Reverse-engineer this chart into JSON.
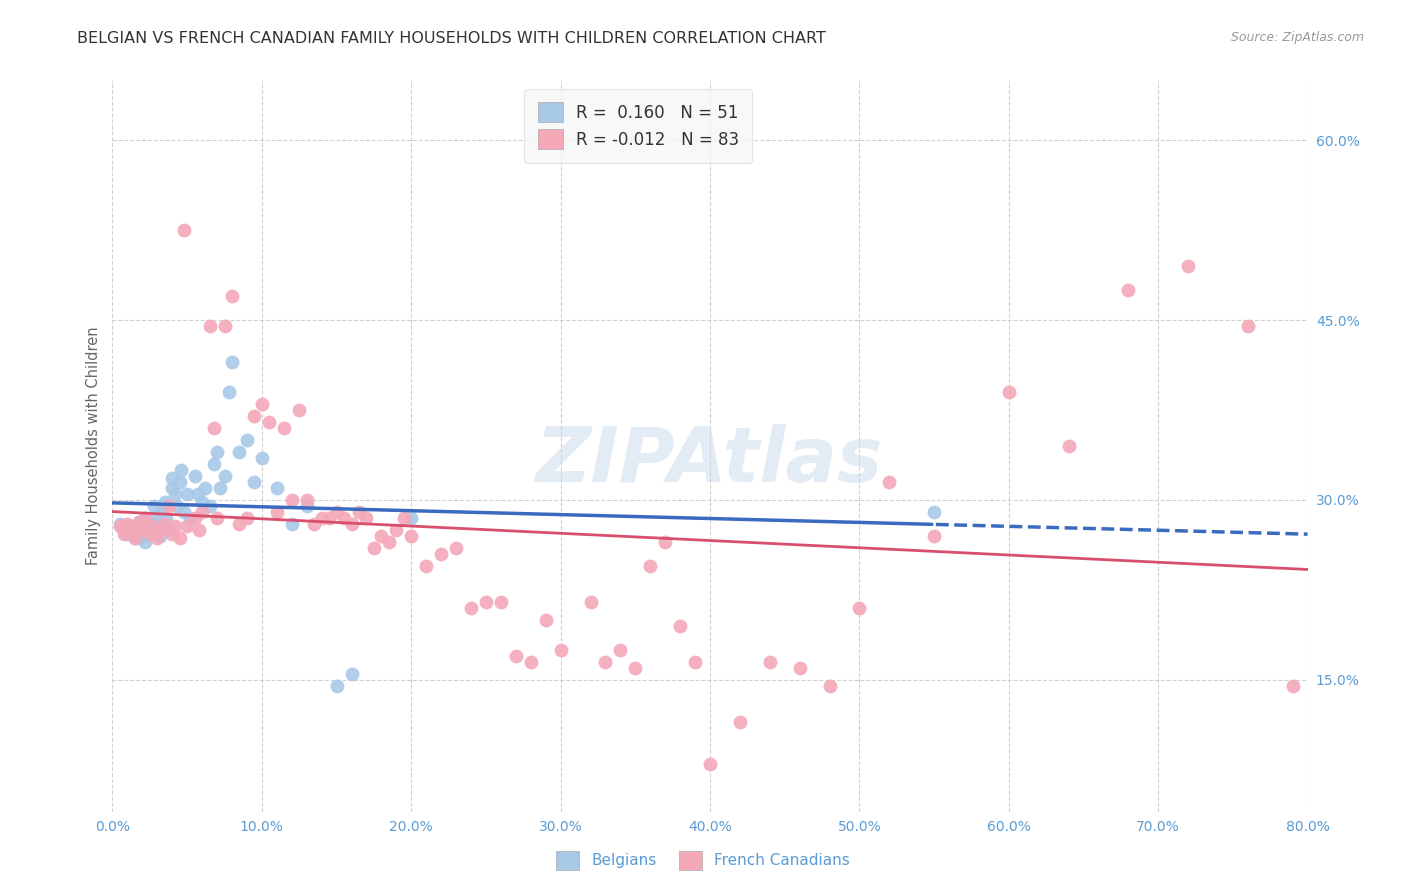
{
  "title": "BELGIAN VS FRENCH CANADIAN FAMILY HOUSEHOLDS WITH CHILDREN CORRELATION CHART",
  "source": "Source: ZipAtlas.com",
  "ylabel": "Family Households with Children",
  "xlim": [
    0.0,
    0.8
  ],
  "ylim": [
    0.04,
    0.65
  ],
  "belgian_color": "#a8c8e8",
  "french_color": "#f4a8b8",
  "belgian_line_color": "#3a6bbf",
  "french_line_color": "#d94f6e",
  "belgian_R": 0.16,
  "belgian_N": 51,
  "french_R": -0.012,
  "french_N": 83,
  "belgians_x": [
    0.005,
    0.008,
    0.01,
    0.012,
    0.015,
    0.015,
    0.018,
    0.02,
    0.022,
    0.022,
    0.025,
    0.027,
    0.028,
    0.03,
    0.03,
    0.032,
    0.033,
    0.035,
    0.036,
    0.038,
    0.04,
    0.04,
    0.042,
    0.043,
    0.045,
    0.046,
    0.048,
    0.05,
    0.052,
    0.055,
    0.057,
    0.06,
    0.062,
    0.065,
    0.068,
    0.07,
    0.072,
    0.075,
    0.078,
    0.08,
    0.085,
    0.09,
    0.095,
    0.1,
    0.11,
    0.12,
    0.13,
    0.15,
    0.16,
    0.2,
    0.55
  ],
  "belgians_y": [
    0.28,
    0.275,
    0.272,
    0.278,
    0.268,
    0.276,
    0.282,
    0.27,
    0.265,
    0.285,
    0.275,
    0.28,
    0.295,
    0.278,
    0.285,
    0.27,
    0.292,
    0.298,
    0.285,
    0.275,
    0.31,
    0.318,
    0.305,
    0.295,
    0.315,
    0.325,
    0.29,
    0.305,
    0.285,
    0.32,
    0.305,
    0.298,
    0.31,
    0.295,
    0.33,
    0.34,
    0.31,
    0.32,
    0.39,
    0.415,
    0.34,
    0.35,
    0.315,
    0.335,
    0.31,
    0.28,
    0.295,
    0.145,
    0.155,
    0.285,
    0.29
  ],
  "french_x": [
    0.005,
    0.008,
    0.01,
    0.012,
    0.015,
    0.018,
    0.02,
    0.022,
    0.025,
    0.027,
    0.03,
    0.032,
    0.035,
    0.038,
    0.04,
    0.042,
    0.045,
    0.048,
    0.05,
    0.055,
    0.058,
    0.06,
    0.065,
    0.068,
    0.07,
    0.075,
    0.08,
    0.085,
    0.09,
    0.095,
    0.1,
    0.105,
    0.11,
    0.115,
    0.12,
    0.125,
    0.13,
    0.135,
    0.14,
    0.145,
    0.15,
    0.155,
    0.16,
    0.165,
    0.17,
    0.175,
    0.18,
    0.185,
    0.19,
    0.195,
    0.2,
    0.21,
    0.22,
    0.23,
    0.24,
    0.25,
    0.26,
    0.27,
    0.28,
    0.29,
    0.3,
    0.32,
    0.33,
    0.34,
    0.35,
    0.36,
    0.37,
    0.38,
    0.39,
    0.4,
    0.42,
    0.44,
    0.46,
    0.48,
    0.5,
    0.52,
    0.55,
    0.6,
    0.64,
    0.68,
    0.72,
    0.76,
    0.79
  ],
  "french_y": [
    0.278,
    0.272,
    0.28,
    0.275,
    0.268,
    0.282,
    0.276,
    0.285,
    0.272,
    0.278,
    0.268,
    0.275,
    0.28,
    0.295,
    0.272,
    0.278,
    0.268,
    0.525,
    0.278,
    0.285,
    0.275,
    0.29,
    0.445,
    0.36,
    0.285,
    0.445,
    0.47,
    0.28,
    0.285,
    0.37,
    0.38,
    0.365,
    0.29,
    0.36,
    0.3,
    0.375,
    0.3,
    0.28,
    0.285,
    0.285,
    0.29,
    0.285,
    0.28,
    0.29,
    0.285,
    0.26,
    0.27,
    0.265,
    0.275,
    0.285,
    0.27,
    0.245,
    0.255,
    0.26,
    0.21,
    0.215,
    0.215,
    0.17,
    0.165,
    0.2,
    0.175,
    0.215,
    0.165,
    0.175,
    0.16,
    0.245,
    0.265,
    0.195,
    0.165,
    0.08,
    0.115,
    0.165,
    0.16,
    0.145,
    0.21,
    0.315,
    0.27,
    0.39,
    0.345,
    0.475,
    0.495,
    0.445,
    0.145
  ],
  "watermark": "ZIPAtlas",
  "legend_box_color": "#f7f7f7",
  "grid_color": "#cccccc",
  "title_color": "#333333",
  "axis_tick_color": "#5a9bd5",
  "legend_text_color": "#333333",
  "legend_value_color": "#5a9bd5",
  "ylabel_color": "#666666",
  "source_color": "#999999"
}
